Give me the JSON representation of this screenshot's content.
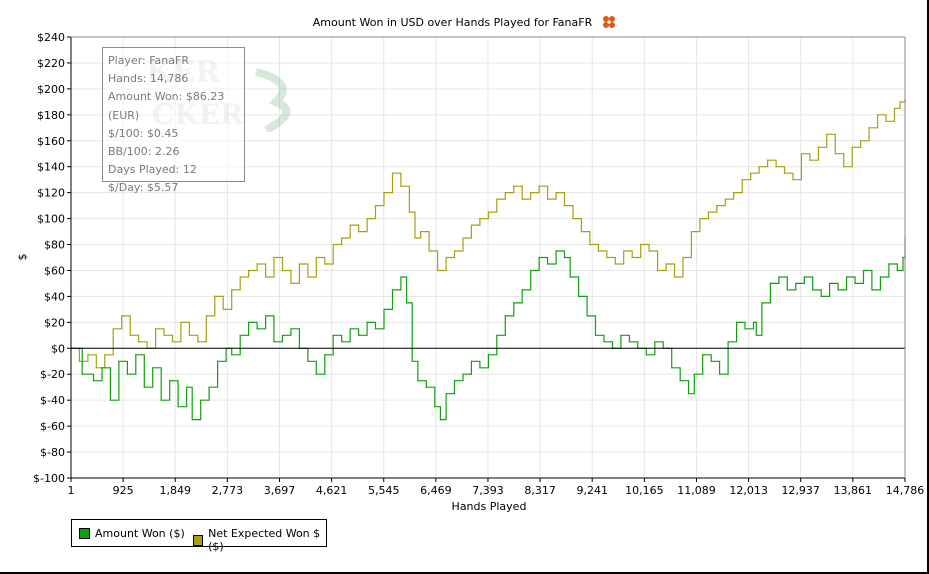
{
  "title": "Amount Won in USD over Hands Played for FanaFR",
  "stats": [
    "Player: FanaFR",
    "Hands: 14,786",
    "Amount Won: $86.23 (EUR)",
    "$/100: $0.45",
    "BB/100: 2.26",
    "Days Played: 12",
    "$/Day: $5.57"
  ],
  "legend": [
    {
      "label": "Amount Won ($)",
      "color": "#10a010"
    },
    {
      "label": "Net Expected Won $ ($)",
      "color": "#a8a010"
    }
  ],
  "colors": {
    "won": "#10a010",
    "expected": "#a8a010",
    "grid": "#e6e6e6"
  },
  "chart_data": {
    "type": "line",
    "title": "Amount Won in USD over Hands Played for FanaFR",
    "xlabel": "Hands Played",
    "ylabel": "$",
    "xlim": [
      1,
      14786
    ],
    "ylim": [
      -100,
      240
    ],
    "x_ticks": [
      1,
      925,
      1849,
      2773,
      3697,
      4621,
      5545,
      6469,
      7393,
      8317,
      9241,
      10165,
      11089,
      12013,
      12937,
      13861,
      14786
    ],
    "x_tick_labels": [
      "1",
      "925",
      "1,849",
      "2,773",
      "3,697",
      "4,621",
      "5,545",
      "6,469",
      "7,393",
      "8,317",
      "9,241",
      "10,165",
      "11,089",
      "12,013",
      "12,937",
      "13,861",
      "14,786"
    ],
    "y_ticks": [
      -100,
      -80,
      -60,
      -40,
      -20,
      0,
      20,
      40,
      60,
      80,
      100,
      120,
      140,
      160,
      180,
      200,
      220,
      240
    ],
    "y_tick_labels": [
      "$-100",
      "$-80",
      "$-60",
      "$-40",
      "$-20",
      "$0",
      "$20",
      "$40",
      "$60",
      "$80",
      "$100",
      "$120",
      "$140",
      "$160",
      "$180",
      "$200",
      "$220",
      "$240"
    ],
    "grid": true,
    "legend_position": "bottom-left",
    "series": [
      {
        "name": "Amount Won ($)",
        "x": [
          1,
          200,
          400,
          550,
          700,
          850,
          1000,
          1150,
          1300,
          1450,
          1600,
          1750,
          1900,
          2050,
          2150,
          2300,
          2450,
          2600,
          2750,
          2850,
          3000,
          3150,
          3300,
          3450,
          3600,
          3750,
          3900,
          4050,
          4200,
          4350,
          4500,
          4650,
          4800,
          4950,
          5100,
          5250,
          5400,
          5550,
          5700,
          5850,
          5950,
          6050,
          6150,
          6300,
          6450,
          6550,
          6650,
          6800,
          6950,
          7100,
          7250,
          7400,
          7550,
          7700,
          7850,
          8000,
          8150,
          8300,
          8450,
          8600,
          8750,
          8850,
          9000,
          9150,
          9300,
          9450,
          9600,
          9750,
          9900,
          10050,
          10200,
          10350,
          10500,
          10650,
          10800,
          10950,
          11050,
          11200,
          11350,
          11500,
          11650,
          11800,
          11950,
          12100,
          12150,
          12250,
          12400,
          12550,
          12700,
          12850,
          13000,
          13150,
          13300,
          13450,
          13600,
          13750,
          13900,
          14050,
          14200,
          14350,
          14500,
          14650,
          14750,
          14786
        ],
        "y": [
          0,
          -20,
          -25,
          -15,
          -40,
          -10,
          -20,
          -5,
          -30,
          -15,
          -40,
          -25,
          -45,
          -30,
          -55,
          -40,
          -30,
          -10,
          0,
          -5,
          10,
          20,
          15,
          25,
          5,
          10,
          15,
          0,
          -10,
          -20,
          -5,
          10,
          5,
          15,
          10,
          20,
          15,
          30,
          45,
          55,
          35,
          -10,
          -25,
          -30,
          -45,
          -55,
          -35,
          -25,
          -20,
          -10,
          -15,
          -5,
          10,
          25,
          35,
          45,
          60,
          70,
          65,
          75,
          70,
          55,
          40,
          25,
          10,
          5,
          0,
          10,
          5,
          0,
          -5,
          5,
          0,
          -15,
          -25,
          -35,
          -20,
          -5,
          -10,
          -20,
          5,
          20,
          15,
          20,
          10,
          35,
          50,
          55,
          45,
          50,
          55,
          45,
          40,
          50,
          45,
          55,
          50,
          60,
          45,
          55,
          65,
          60,
          70,
          86
        ]
      },
      {
        "name": "Net Expected Won $ ($)",
        "x": [
          1,
          150,
          300,
          450,
          600,
          750,
          900,
          1050,
          1200,
          1350,
          1500,
          1650,
          1800,
          1950,
          2100,
          2250,
          2400,
          2550,
          2700,
          2850,
          3000,
          3150,
          3300,
          3450,
          3600,
          3750,
          3900,
          4050,
          4200,
          4350,
          4500,
          4650,
          4800,
          4950,
          5100,
          5250,
          5400,
          5550,
          5700,
          5850,
          6000,
          6100,
          6200,
          6350,
          6500,
          6650,
          6800,
          6950,
          7100,
          7250,
          7400,
          7550,
          7700,
          7850,
          8000,
          8150,
          8300,
          8450,
          8600,
          8750,
          8900,
          9050,
          9200,
          9350,
          9500,
          9650,
          9800,
          9950,
          10100,
          10250,
          10400,
          10550,
          10700,
          10850,
          11000,
          11150,
          11300,
          11450,
          11600,
          11750,
          11900,
          12050,
          12200,
          12350,
          12500,
          12650,
          12800,
          12950,
          13100,
          13250,
          13400,
          13550,
          13700,
          13850,
          14000,
          14150,
          14300,
          14450,
          14600,
          14700,
          14786
        ],
        "y": [
          0,
          -10,
          -5,
          -15,
          -5,
          15,
          25,
          10,
          5,
          0,
          15,
          10,
          5,
          20,
          10,
          5,
          25,
          40,
          30,
          45,
          55,
          60,
          65,
          55,
          70,
          60,
          50,
          65,
          55,
          70,
          65,
          80,
          85,
          95,
          90,
          100,
          110,
          120,
          135,
          125,
          105,
          85,
          90,
          75,
          60,
          70,
          75,
          85,
          95,
          100,
          105,
          115,
          120,
          125,
          115,
          120,
          125,
          115,
          120,
          110,
          100,
          90,
          80,
          75,
          70,
          65,
          75,
          70,
          80,
          75,
          60,
          65,
          55,
          70,
          90,
          100,
          105,
          110,
          115,
          120,
          130,
          135,
          140,
          145,
          140,
          135,
          130,
          150,
          145,
          155,
          165,
          150,
          140,
          155,
          160,
          170,
          180,
          175,
          185,
          190,
          192
        ]
      }
    ]
  }
}
